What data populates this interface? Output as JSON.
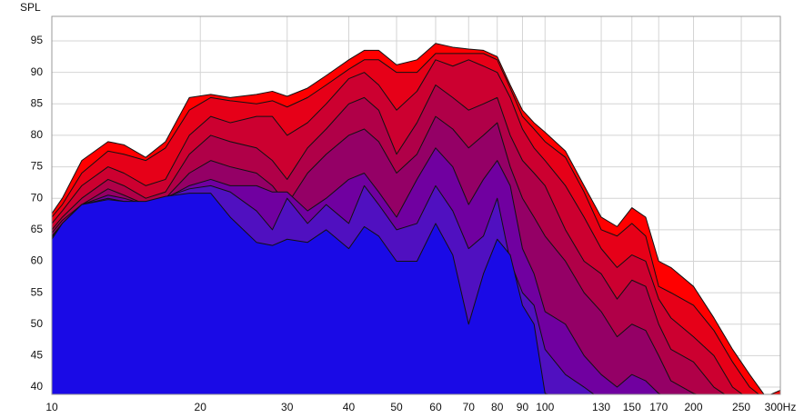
{
  "chart_data": {
    "type": "area",
    "y_label": "SPL",
    "xscale": "log",
    "xlim": [
      10,
      300
    ],
    "ylim": [
      38.85,
      98.9
    ],
    "xticks": [
      10,
      20,
      30,
      40,
      50,
      60,
      70,
      80,
      90,
      100,
      130,
      150,
      170,
      200,
      250,
      {
        "value": 300,
        "label": "300Hz"
      }
    ],
    "yticks": [
      40,
      45,
      50,
      55,
      60,
      65,
      70,
      75,
      80,
      85,
      90,
      95
    ],
    "grid": true,
    "x": [
      10,
      10.5,
      11.5,
      13,
      14,
      15.5,
      17,
      19,
      21,
      23,
      26,
      28,
      30,
      33,
      36,
      40,
      43,
      46,
      50,
      55,
      60,
      65,
      70,
      75,
      80,
      85,
      90,
      95,
      100,
      110,
      120,
      130,
      140,
      150,
      160,
      170,
      180,
      200,
      220,
      240,
      260,
      280,
      300
    ],
    "series": [
      {
        "color": "#ff0000",
        "values": [
          67.6,
          70,
          76,
          79,
          78.5,
          76.5,
          79,
          86,
          86.5,
          86,
          86.5,
          87,
          86.2,
          87.5,
          89.5,
          92,
          93.5,
          93.5,
          91.2,
          92,
          94.6,
          94,
          93.7,
          93.5,
          92.5,
          88,
          84,
          82,
          80.5,
          77.5,
          72,
          67,
          65.5,
          68.5,
          67,
          60,
          59,
          56,
          51,
          46,
          42,
          38.5,
          39.5
        ]
      },
      {
        "color": "#e60018",
        "values": [
          67,
          69,
          74,
          77.5,
          77,
          76,
          78,
          84,
          86,
          85.5,
          85,
          85.5,
          84.5,
          86,
          88,
          90.5,
          92,
          92,
          90,
          90,
          93,
          93,
          93,
          93,
          92,
          87.5,
          83,
          81,
          79,
          76.5,
          71,
          65,
          64,
          66,
          64,
          56,
          55,
          53,
          49,
          44,
          40,
          38,
          38
        ]
      },
      {
        "color": "#cc0030",
        "values": [
          66,
          68,
          72,
          75,
          74,
          72,
          73,
          80,
          83,
          82,
          83,
          83,
          80,
          82,
          85,
          89,
          90,
          88,
          84,
          87,
          92,
          91,
          92,
          91,
          90,
          86,
          81,
          78,
          76,
          72,
          67,
          62,
          59,
          61,
          60,
          54,
          51,
          48,
          45,
          40,
          38,
          38,
          38
        ]
      },
      {
        "color": "#b00048",
        "values": [
          65,
          67,
          70,
          73,
          72,
          70,
          71,
          77,
          80,
          79,
          78,
          76,
          73,
          78,
          81,
          85,
          86,
          84,
          77,
          82,
          88,
          86,
          84,
          85,
          86,
          80,
          76,
          74,
          72,
          65,
          60,
          58,
          54,
          57,
          56,
          50,
          46,
          44,
          40,
          38,
          38,
          38,
          38
        ]
      },
      {
        "color": "#940066",
        "values": [
          64.5,
          66.5,
          69,
          71.5,
          70.5,
          69,
          70,
          74,
          76,
          75,
          74,
          72,
          69,
          74,
          77,
          80,
          81,
          79,
          74,
          77,
          83,
          81,
          78,
          80,
          82,
          75,
          70,
          67,
          64,
          60,
          55,
          52,
          48,
          50,
          49,
          45,
          41,
          39,
          38,
          38,
          38,
          38,
          38
        ]
      },
      {
        "color": "#7000a0",
        "values": [
          64,
          66,
          69,
          70.5,
          70,
          69,
          70,
          72,
          73,
          72,
          72,
          71,
          71,
          68,
          70,
          73,
          74,
          71,
          67,
          73,
          78,
          75,
          69,
          73,
          76,
          72,
          62,
          58,
          52,
          50,
          45,
          42,
          40,
          42,
          41,
          39,
          38,
          38,
          38,
          38,
          38,
          38,
          38
        ]
      },
      {
        "color": "#5010c0",
        "values": [
          63.8,
          66,
          69,
          70,
          69.5,
          69.3,
          70.2,
          71.5,
          72,
          71,
          68,
          65,
          70,
          66,
          69,
          66,
          72,
          69,
          65,
          66,
          72,
          68,
          62,
          64,
          70,
          60,
          55,
          53,
          46,
          42,
          40,
          38,
          38,
          38,
          38,
          38,
          38,
          38,
          38,
          38,
          38,
          38,
          38
        ]
      },
      {
        "color": "#1a0ae6",
        "values": [
          63.5,
          66,
          69,
          69.8,
          69.5,
          69.5,
          70.3,
          70.8,
          70.8,
          67,
          63,
          62.5,
          63.5,
          63,
          65,
          62,
          65.5,
          64,
          60,
          60,
          66,
          61,
          50,
          58,
          63.5,
          61,
          53,
          50,
          39,
          38,
          38,
          38,
          38,
          38,
          38,
          38,
          38,
          38,
          38,
          38,
          38,
          38,
          38
        ]
      }
    ]
  }
}
